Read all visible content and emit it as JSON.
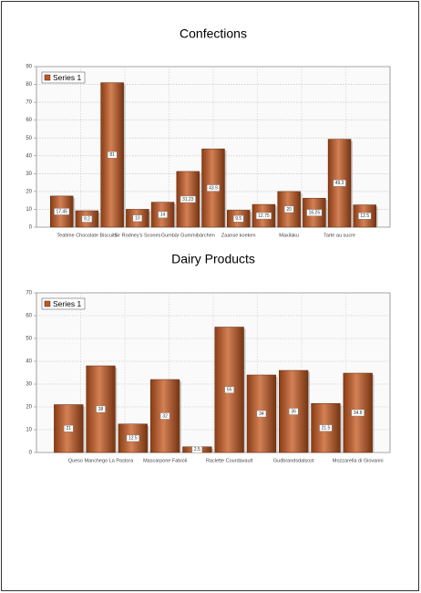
{
  "chart_data": [
    {
      "type": "bar",
      "title": "Confections",
      "categories": [
        null,
        "Teatime Chocolate Biscuits",
        null,
        "Sir Rodney's Scones",
        null,
        "Gumbär Gummibärchen",
        null,
        "Zaanse koeken",
        null,
        "Maxilaku",
        null,
        "Tarte au sucre",
        null
      ],
      "series": [
        {
          "name": "Series 1",
          "color": "#c4561c",
          "values": [
            17.45,
            9.2,
            81,
            10,
            14,
            31.23,
            43.9,
            9.5,
            12.75,
            20,
            16.25,
            49.3,
            12.5
          ]
        }
      ],
      "ylim": [
        0,
        90
      ],
      "yticks": [
        0,
        10,
        20,
        30,
        40,
        50,
        60,
        70,
        80,
        90
      ],
      "grid": true,
      "legend": "top-left"
    },
    {
      "type": "bar",
      "title": "Dairy Products",
      "categories": [
        null,
        "Queso Manchego La Pastora",
        null,
        "Mascarpone Fabioli",
        null,
        "Raclette Courdavault",
        null,
        "Gudbrandsdalsost",
        null,
        "Mozzarella di Giovanni"
      ],
      "series": [
        {
          "name": "Series 1",
          "color": "#c4561c",
          "values": [
            21,
            38,
            12.5,
            32,
            2.5,
            55,
            34,
            36,
            21.5,
            34.8
          ]
        }
      ],
      "ylim": [
        0,
        70
      ],
      "yticks": [
        0,
        10,
        20,
        30,
        40,
        50,
        60,
        70
      ],
      "grid": true,
      "legend": "top-left"
    }
  ]
}
